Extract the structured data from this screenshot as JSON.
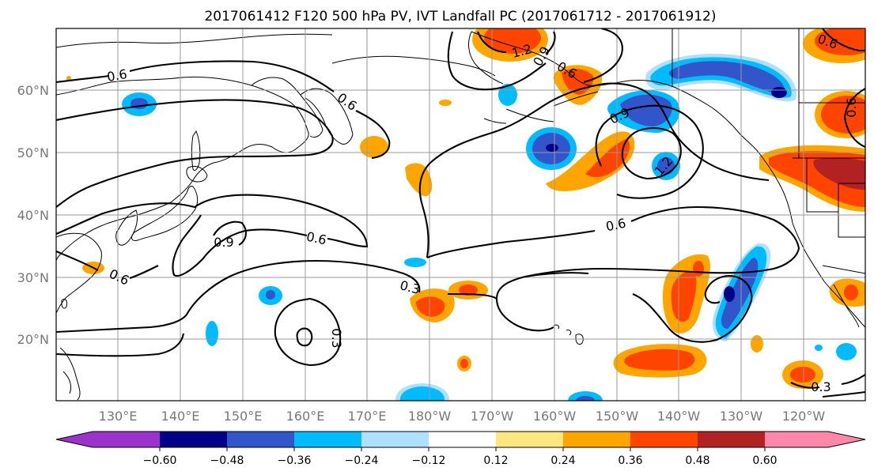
{
  "title": "2017061412 F120 500 hPa PV, IVT Landfall PC (2017061712 - 2017061912)",
  "lat_labels": [
    "60°N",
    "50°N",
    "40°N",
    "30°N",
    "20°N"
  ],
  "lon_labels": [
    "130°E",
    "140°E",
    "150°E",
    "160°E",
    "170°E",
    "180°W",
    "170°W",
    "160°W",
    "150°W",
    "140°W",
    "130°W",
    "120°W"
  ],
  "contour_labels": [
    "0.6",
    "0.6",
    "0.6",
    "0.6",
    "0.6",
    "0.6",
    "0.6",
    "0.6",
    "0.9",
    "0.9",
    "1.2",
    "1.2",
    "0.9",
    "0.3",
    "0.3",
    "0.3"
  ],
  "colorbar": {
    "ticks": [
      "−0.60",
      "−0.48",
      "−0.36",
      "−0.24",
      "−0.12",
      "0.12",
      "0.24",
      "0.36",
      "0.48",
      "0.60"
    ],
    "colors": [
      "#9933cc",
      "#000088",
      "#3355cc",
      "#00bbff",
      "#b0e0ff",
      "#ffffff",
      "#ffe680",
      "#ffa500",
      "#ff4400",
      "#b22222",
      "#ff88aa"
    ]
  },
  "fill_colors": {
    "orange": "#ffa500",
    "red_orange": "#ff4400",
    "light_orange": "#ffe680",
    "dark_red": "#b22222",
    "cyan": "#00bbff",
    "light_blue": "#b0e0ff",
    "blue": "#3355cc",
    "navy": "#000088"
  }
}
